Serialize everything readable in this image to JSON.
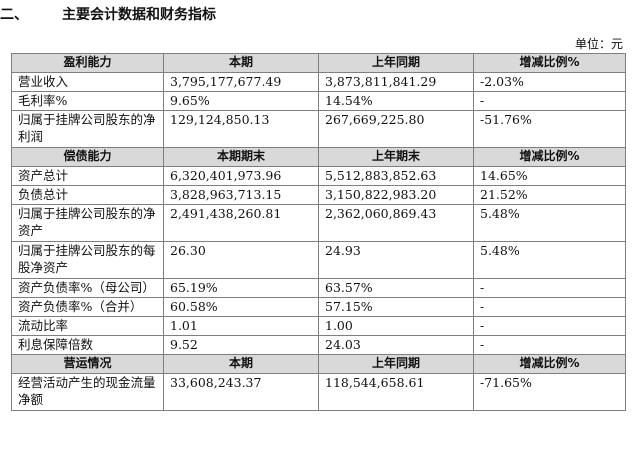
{
  "section": {
    "number": "二、",
    "title": "主要会计数据和财务指标"
  },
  "unit": "单位：元",
  "groups": [
    {
      "header": [
        "盈利能力",
        "本期",
        "上年同期",
        "增减比例%"
      ],
      "rows": [
        [
          "营业收入",
          "3,795,177,677.49",
          "3,873,811,841.29",
          "-2.03%"
        ],
        [
          "毛利率%",
          "9.65%",
          "14.54%",
          "-"
        ],
        [
          "归属于挂牌公司股东的净利润",
          "129,124,850.13",
          "267,669,225.80",
          "-51.76%"
        ]
      ]
    },
    {
      "header": [
        "偿债能力",
        "本期期末",
        "上年期末",
        "增减比例%"
      ],
      "rows": [
        [
          "资产总计",
          "6,320,401,973.96",
          "5,512,883,852.63",
          "14.65%"
        ],
        [
          "负债总计",
          "3,828,963,713.15",
          "3,150,822,983.20",
          "21.52%"
        ],
        [
          "归属于挂牌公司股东的净资产",
          "2,491,438,260.81",
          "2,362,060,869.43",
          "5.48%"
        ],
        [
          "归属于挂牌公司股东的每股净资产",
          "26.30",
          "24.93",
          "5.48%"
        ],
        [
          "资产负债率%（母公司）",
          "65.19%",
          "63.57%",
          "-"
        ],
        [
          "资产负债率%（合并）",
          "60.58%",
          "57.15%",
          "-"
        ],
        [
          "流动比率",
          "1.01",
          "1.00",
          "-"
        ],
        [
          "利息保障倍数",
          "9.52",
          "24.03",
          "-"
        ]
      ]
    },
    {
      "header": [
        "营运情况",
        "本期",
        "上年同期",
        "增减比例%"
      ],
      "rows": [
        [
          "经营活动产生的现金流量净额",
          "33,608,243.37",
          "118,544,658.61",
          "-71.65%"
        ]
      ]
    }
  ]
}
